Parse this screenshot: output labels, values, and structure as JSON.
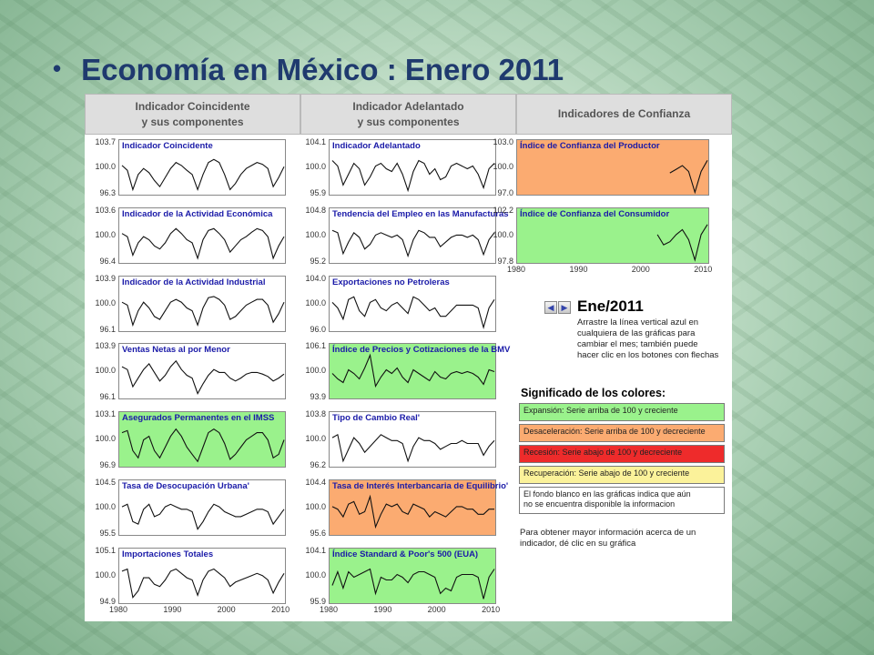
{
  "slide": {
    "title": "Economía en México : Enero 2011"
  },
  "headers": {
    "coincident": [
      "Indicador Coincidente",
      "y sus componentes"
    ],
    "leading": [
      "Indicador Adelantado",
      "y sus componentes"
    ],
    "confidence": [
      "Indicadores de Confianza"
    ]
  },
  "colors": {
    "green": "#9af28c",
    "orange": "#fbab71",
    "red": "#ee2b2b",
    "yellow": "#fbf29a",
    "white": "#ffffff"
  },
  "chart_data": [
    {
      "type": "line",
      "title": "Indicador Coincidente",
      "ticks": [
        "103.7",
        "100.0",
        "96.3"
      ],
      "ylim": [
        96.3,
        103.7
      ],
      "xlim": [
        1980,
        2011
      ],
      "background": "white",
      "series": [
        {
          "values": [
            101,
            100.2,
            97,
            99.5,
            100.5,
            99.8,
            98.5,
            97.5,
            99,
            100.5,
            101.5,
            101,
            100.2,
            99.5,
            97,
            99.5,
            101.5,
            102,
            101.5,
            99.5,
            97,
            98,
            99.5,
            100.5,
            101,
            101.5,
            101.2,
            100.5,
            97.5,
            99,
            100.8
          ]
        }
      ]
    },
    {
      "type": "line",
      "title": "Indicador de la Actividad Económica",
      "ticks": [
        "103.6",
        "100.0",
        "96.4"
      ],
      "ylim": [
        96.4,
        103.6
      ],
      "xlim": [
        1980,
        2011
      ],
      "background": "white",
      "series": [
        {
          "values": [
            101,
            100.5,
            97.5,
            99.5,
            100.5,
            100,
            99,
            98.5,
            99.5,
            101,
            101.8,
            101,
            100,
            99.5,
            97,
            100,
            101.5,
            101.8,
            101,
            100,
            98,
            99,
            100,
            100.5,
            101.2,
            101.8,
            101.5,
            100.5,
            97,
            99,
            100.5
          ]
        }
      ]
    },
    {
      "type": "line",
      "title": "Indicador de la Actividad Industrial",
      "ticks": [
        "103.9",
        "100.0",
        "96.1"
      ],
      "ylim": [
        96.1,
        103.9
      ],
      "xlim": [
        1980,
        2011
      ],
      "background": "white",
      "series": [
        {
          "values": [
            101,
            100.5,
            97,
            99.5,
            101,
            100,
            98.5,
            98,
            99.5,
            101,
            101.5,
            101,
            100,
            99.5,
            97,
            100,
            101.8,
            102,
            101.5,
            100.5,
            98,
            98.5,
            99.5,
            100.5,
            101,
            101.5,
            101.5,
            100.5,
            97.5,
            99,
            101
          ]
        }
      ]
    },
    {
      "type": "line",
      "title": "Ventas Netas al por Menor",
      "ticks": [
        "103.9",
        "100.0",
        "96.1"
      ],
      "ylim": [
        96.1,
        103.9
      ],
      "xlim": [
        1980,
        2011
      ],
      "background": "white",
      "series": [
        {
          "values": [
            101.5,
            101,
            98,
            99.5,
            101,
            102,
            100.5,
            99,
            100,
            101.5,
            102.5,
            101,
            100,
            99.5,
            96.8,
            98.5,
            100,
            101,
            100.5,
            100.5,
            99.5,
            99,
            99.5,
            100.2,
            100.5,
            100.5,
            100.2,
            99.8,
            99,
            99.5,
            100.2
          ]
        }
      ]
    },
    {
      "type": "line",
      "title": "Asegurados Permanentes en el IMSS",
      "ticks": [
        "103.1",
        "100.0",
        "96.9"
      ],
      "ylim": [
        96.9,
        103.1
      ],
      "xlim": [
        1980,
        2011
      ],
      "background": "green",
      "series": [
        {
          "values": [
            101.5,
            101.8,
            99,
            98,
            100.5,
            101,
            99,
            98,
            99.5,
            101,
            102,
            101,
            99.5,
            98.5,
            97.5,
            99.5,
            101.5,
            102,
            101.5,
            100,
            97.8,
            98.5,
            99.5,
            100.5,
            101,
            101.5,
            101.5,
            100.5,
            98,
            98.5,
            100.5
          ]
        }
      ]
    },
    {
      "type": "line",
      "title": "Tasa de Desocupación Urbana'",
      "ticks": [
        "104.5",
        "100.0",
        "95.5"
      ],
      "ylim": [
        95.5,
        104.5
      ],
      "xlim": [
        1980,
        2011
      ],
      "background": "white",
      "series": [
        {
          "values": [
            101,
            101.5,
            98,
            97.5,
            100.5,
            101.5,
            99,
            99.5,
            101,
            101.5,
            101,
            100.5,
            100.5,
            100,
            96.5,
            98,
            100,
            101.5,
            101,
            100,
            99.5,
            99,
            99,
            99.5,
            100,
            100.5,
            100.5,
            100,
            97.5,
            99,
            100.5
          ]
        }
      ]
    },
    {
      "type": "line",
      "title": "Importaciones Totales",
      "ticks": [
        "105.1",
        "100.0",
        "94.9"
      ],
      "ylim": [
        94.9,
        105.1
      ],
      "xlim": [
        1980,
        2011
      ],
      "background": "white",
      "series": [
        {
          "values": [
            102,
            102.5,
            96,
            97.5,
            100.5,
            100.5,
            99,
            98.5,
            100,
            102,
            102.5,
            101.5,
            100.5,
            100,
            96.5,
            100,
            102,
            102.5,
            101.5,
            100.5,
            98.5,
            99.5,
            100,
            100.5,
            101,
            101.5,
            101,
            100,
            97,
            99.5,
            101.5
          ]
        }
      ]
    },
    {
      "type": "line",
      "title": "Indicador Adelantado",
      "ticks": [
        "104.1",
        "100.0",
        "95.9"
      ],
      "ylim": [
        95.9,
        104.1
      ],
      "xlim": [
        1980,
        2011
      ],
      "background": "white",
      "series": [
        {
          "values": [
            102,
            101,
            97.5,
            99.5,
            101.5,
            100.5,
            97.5,
            99,
            101,
            101.5,
            100.5,
            100,
            101.5,
            99.5,
            96.5,
            100,
            102,
            101.5,
            99.5,
            100.5,
            98.5,
            99,
            101,
            101.5,
            101,
            100.5,
            101,
            99.5,
            97,
            100.5,
            101.5
          ]
        }
      ]
    },
    {
      "type": "line",
      "title": "Tendencia del Empleo en las Manufacturas",
      "ticks": [
        "104.8",
        "100.0",
        "95.2"
      ],
      "ylim": [
        95.2,
        104.8
      ],
      "xlim": [
        1980,
        2011
      ],
      "background": "white",
      "series": [
        {
          "values": [
            102,
            101.5,
            97,
            99.5,
            101.5,
            100.5,
            98,
            99,
            101,
            101.5,
            101,
            100.5,
            101,
            100,
            96.5,
            100,
            102,
            101.5,
            100.5,
            100.5,
            98.5,
            99.5,
            100.5,
            101,
            101,
            100.5,
            101,
            100,
            96.8,
            100,
            101.5
          ]
        }
      ]
    },
    {
      "type": "line",
      "title": "Exportaciones no Petroleras",
      "ticks": [
        "104.0",
        "100.0",
        "96.0"
      ],
      "ylim": [
        96.0,
        104.0
      ],
      "xlim": [
        1980,
        2011
      ],
      "background": "white",
      "series": [
        {
          "values": [
            101,
            100,
            98,
            101.5,
            102,
            99.5,
            98.5,
            101,
            101.5,
            100,
            99.5,
            100.5,
            101,
            100,
            99,
            102,
            101.5,
            100.5,
            99.5,
            100,
            98.5,
            98.5,
            99.5,
            100.5,
            100.5,
            100.5,
            100.5,
            100,
            96.5,
            100,
            101.5
          ]
        }
      ]
    },
    {
      "type": "line",
      "title": "Índice de Precios y Cotizaciones de la BMV",
      "ticks": [
        "106.1",
        "100.0",
        "93.9"
      ],
      "ylim": [
        93.9,
        106.1
      ],
      "xlim": [
        1980,
        2011
      ],
      "background": "green",
      "series": [
        {
          "values": [
            100.5,
            99,
            98,
            101.5,
            100.5,
            99,
            102,
            105.5,
            97,
            99.5,
            101.5,
            100.5,
            102,
            99.5,
            98,
            101.5,
            100.5,
            99.5,
            98.5,
            101,
            99.5,
            99,
            100.5,
            101,
            100.5,
            101,
            100.5,
            99.5,
            97.5,
            101.5,
            101
          ]
        }
      ]
    },
    {
      "type": "line",
      "title": "Tipo de Cambio Real'",
      "ticks": [
        "103.8",
        "100.0",
        "96.2"
      ],
      "ylim": [
        96.2,
        103.8
      ],
      "xlim": [
        1980,
        2011
      ],
      "background": "white",
      "series": [
        {
          "values": [
            101,
            101.5,
            97,
            99,
            101,
            100,
            98.5,
            99.5,
            100.5,
            101.5,
            101,
            100.5,
            100.5,
            100,
            97,
            99.5,
            101,
            100.5,
            100.5,
            100,
            99,
            99.5,
            100,
            100,
            100.5,
            100,
            100,
            100,
            98,
            99.5,
            100.5
          ]
        }
      ]
    },
    {
      "type": "line",
      "title": "Tasa de Interés Interbancaria de Equilibrio'",
      "ticks": [
        "104.4",
        "100.0",
        "95.6"
      ],
      "ylim": [
        95.6,
        104.4
      ],
      "xlim": [
        1980,
        2011
      ],
      "background": "orange",
      "series": [
        {
          "values": [
            101,
            100.5,
            99,
            101.5,
            102,
            99.5,
            100,
            103,
            97,
            99.5,
            101.5,
            101,
            101.5,
            100,
            99.5,
            101.5,
            101,
            100.5,
            99,
            100,
            99.5,
            99,
            100,
            101,
            101,
            100.5,
            100.5,
            99.5,
            99.5,
            100.5,
            100.5
          ]
        }
      ]
    },
    {
      "type": "line",
      "title": "Índice Standard & Poor's 500 (EUA)",
      "ticks": [
        "104.1",
        "100.0",
        "95.9"
      ],
      "ylim": [
        95.9,
        104.1
      ],
      "xlim": [
        1980,
        2011
      ],
      "background": "green",
      "series": [
        {
          "values": [
            99,
            101.5,
            98.5,
            101.5,
            100.5,
            101,
            101.5,
            102,
            97.5,
            100.5,
            100,
            100,
            101,
            100.5,
            99.5,
            101,
            101.5,
            101.5,
            101,
            100.5,
            97.5,
            98.5,
            98,
            100.5,
            101,
            101,
            101,
            100.5,
            96.5,
            100.5,
            102
          ]
        }
      ]
    },
    {
      "type": "line",
      "title": "Índice de Confianza del Productor",
      "ticks": [
        "103.0",
        "100.0",
        "97.0"
      ],
      "ylim": [
        97.0,
        103.0
      ],
      "xlim": [
        1980,
        2011
      ],
      "background": "orange",
      "series": [
        {
          "values": [
            null,
            null,
            null,
            null,
            null,
            null,
            null,
            null,
            null,
            null,
            null,
            null,
            null,
            null,
            null,
            null,
            null,
            null,
            null,
            null,
            null,
            null,
            null,
            null,
            99.8,
            100.3,
            100.8,
            100,
            97.2,
            100,
            101.5
          ]
        }
      ]
    },
    {
      "type": "line",
      "title": "Índice de Confianza del Consumidor",
      "ticks": [
        "102.2",
        "100.0",
        "97.8"
      ],
      "ylim": [
        97.8,
        102.2
      ],
      "xlim": [
        1980,
        2011
      ],
      "background": "green",
      "series": [
        {
          "values": [
            null,
            null,
            null,
            null,
            null,
            null,
            null,
            null,
            null,
            null,
            null,
            null,
            null,
            null,
            null,
            null,
            null,
            null,
            null,
            null,
            null,
            null,
            100.5,
            99.5,
            99.8,
            100.5,
            101,
            100,
            98,
            100.5,
            101.5
          ]
        }
      ]
    }
  ],
  "x_ticks": [
    "1980",
    "1990",
    "2000",
    "2010"
  ],
  "controls": {
    "prev_glyph": "◀",
    "next_glyph": "▶",
    "month": "Ene/2011",
    "instructions": [
      "Arrastre la línea vertical azul en",
      "cualquiera de las gráficas para",
      "cambiar el mes; también puede",
      "hacer clic en los botones con flechas"
    ]
  },
  "legend": {
    "title": "Significado de los colores:",
    "items": [
      {
        "color": "#9af28c",
        "lines": [
          "Expansión: Serie arriba de 100 y creciente"
        ]
      },
      {
        "color": "#fbab71",
        "lines": [
          "Desaceleración: Serie arriba de 100 y decreciente"
        ]
      },
      {
        "color": "#ee2b2b",
        "lines": [
          "Recesión: Serie abajo de 100 y decreciente"
        ]
      },
      {
        "color": "#fbf29a",
        "lines": [
          "Recuperación: Serie abajo de 100 y creciente"
        ]
      },
      {
        "color": "#ffffff",
        "lines": [
          "El fondo blanco en las gráficas indica que aún",
          "no se encuentra disponible la informacion"
        ]
      }
    ]
  },
  "footer": [
    "Para obtener mayor información acerca de un",
    "indicador, dé clic en su gráfica"
  ]
}
